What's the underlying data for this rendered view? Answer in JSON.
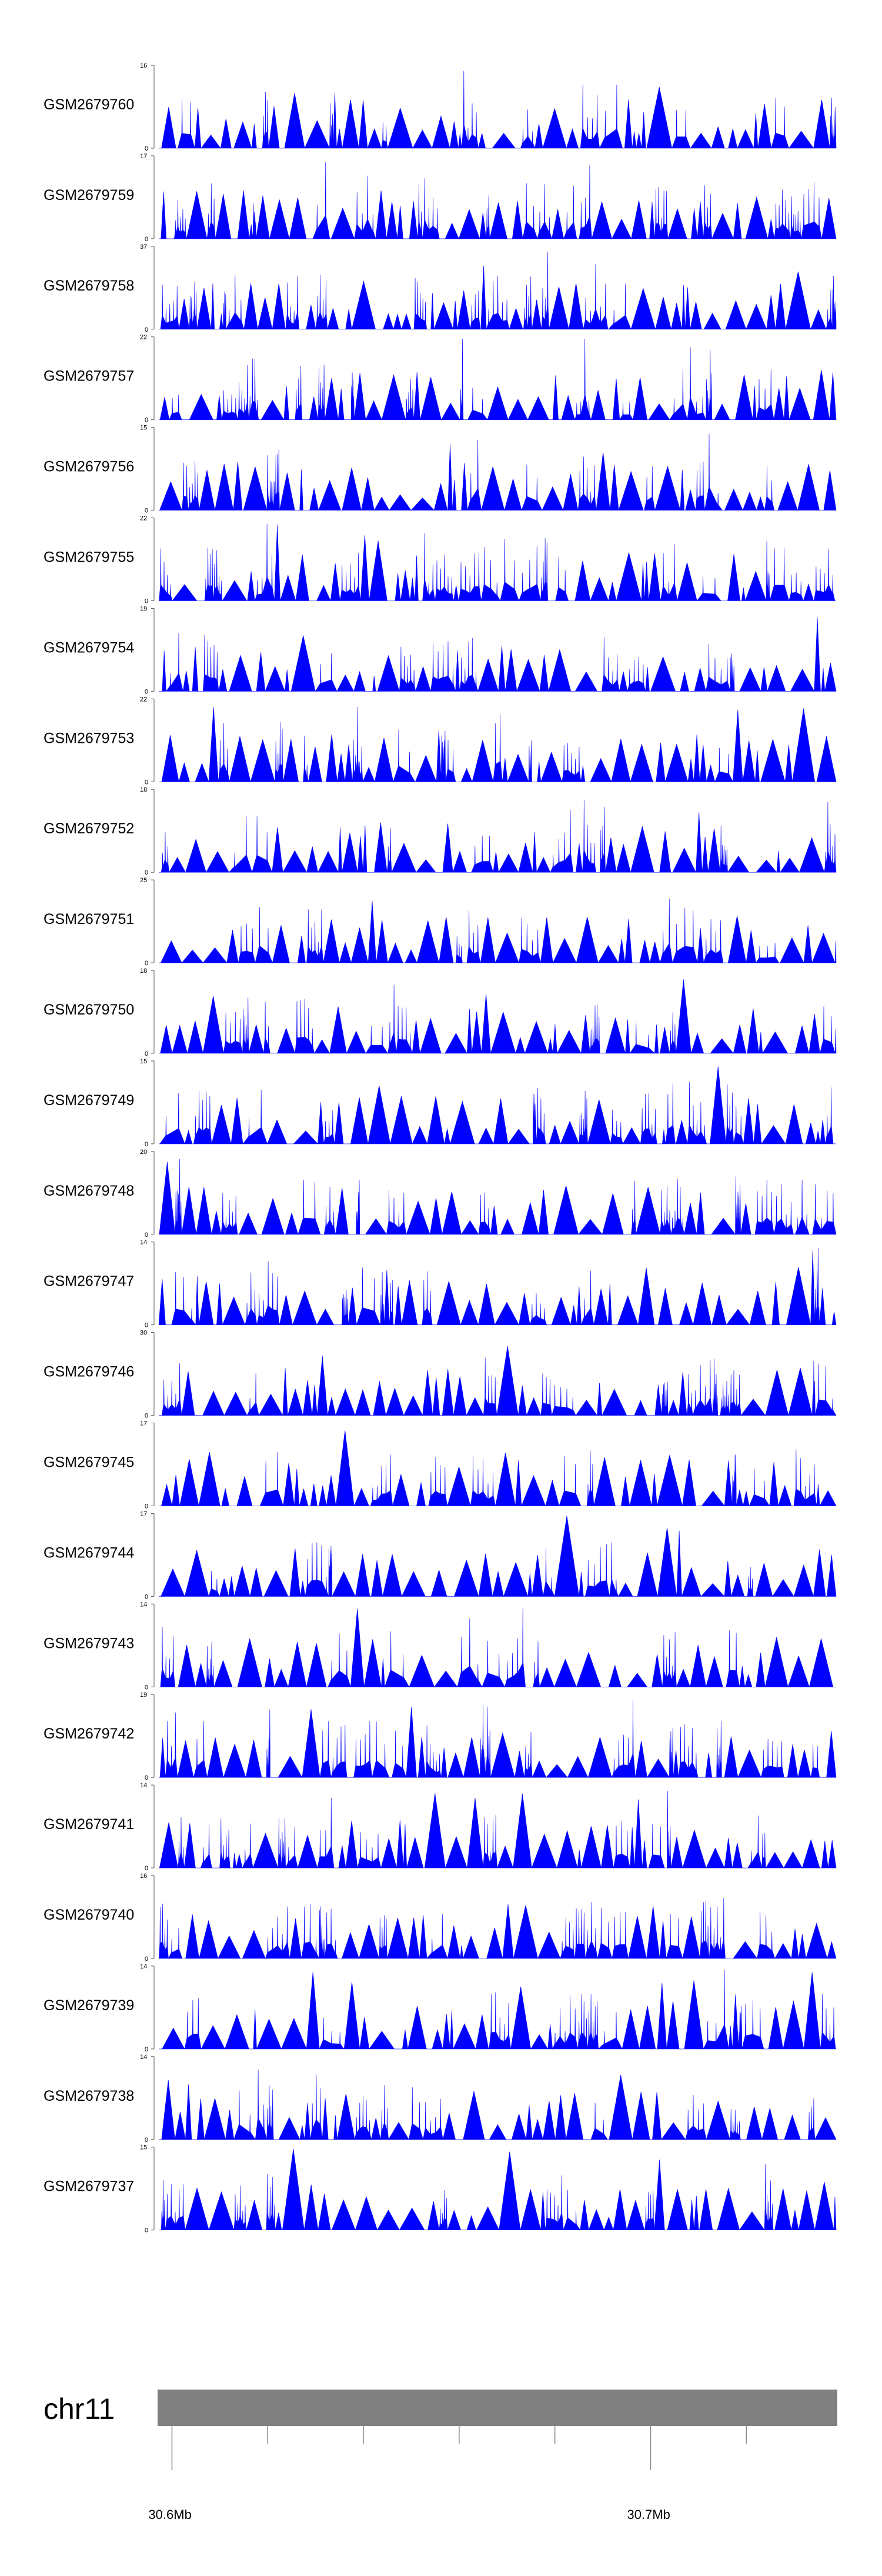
{
  "chart_data": {
    "type": "area",
    "color": "#0000ff",
    "chromosome": "chr11",
    "genome_axis": {
      "range": [
        30.597,
        30.739
      ],
      "labels": [
        {
          "pos": 30.6,
          "text": "30.6Mb"
        },
        {
          "pos": 30.7,
          "text": "30.7Mb"
        }
      ],
      "minor_ticks": [
        30.6,
        30.62,
        30.64,
        30.66,
        30.68,
        30.7,
        30.72
      ],
      "ideogram_color": "#808080"
    },
    "tracks": [
      {
        "name": "GSM2679760",
        "ymin": 0,
        "ymax": 16
      },
      {
        "name": "GSM2679759",
        "ymin": 0,
        "ymax": 17
      },
      {
        "name": "GSM2679758",
        "ymin": 0,
        "ymax": 37
      },
      {
        "name": "GSM2679757",
        "ymin": 0,
        "ymax": 22
      },
      {
        "name": "GSM2679756",
        "ymin": 0,
        "ymax": 15
      },
      {
        "name": "GSM2679755",
        "ymin": 0,
        "ymax": 22
      },
      {
        "name": "GSM2679754",
        "ymin": 0,
        "ymax": 19
      },
      {
        "name": "GSM2679753",
        "ymin": 0,
        "ymax": 22
      },
      {
        "name": "GSM2679752",
        "ymin": 0,
        "ymax": 18
      },
      {
        "name": "GSM2679751",
        "ymin": 0,
        "ymax": 25
      },
      {
        "name": "GSM2679750",
        "ymin": 0,
        "ymax": 18
      },
      {
        "name": "GSM2679749",
        "ymin": 0,
        "ymax": 15
      },
      {
        "name": "GSM2679748",
        "ymin": 0,
        "ymax": 20
      },
      {
        "name": "GSM2679747",
        "ymin": 0,
        "ymax": 14
      },
      {
        "name": "GSM2679746",
        "ymin": 0,
        "ymax": 30
      },
      {
        "name": "GSM2679745",
        "ymin": 0,
        "ymax": 17
      },
      {
        "name": "GSM2679744",
        "ymin": 0,
        "ymax": 17
      },
      {
        "name": "GSM2679743",
        "ymin": 0,
        "ymax": 14
      },
      {
        "name": "GSM2679742",
        "ymin": 0,
        "ymax": 19
      },
      {
        "name": "GSM2679741",
        "ymin": 0,
        "ymax": 14
      },
      {
        "name": "GSM2679740",
        "ymin": 0,
        "ymax": 16
      },
      {
        "name": "GSM2679739",
        "ymin": 0,
        "ymax": 14
      },
      {
        "name": "GSM2679738",
        "ymin": 0,
        "ymax": 14
      },
      {
        "name": "GSM2679737",
        "ymin": 0,
        "ymax": 15
      }
    ]
  }
}
